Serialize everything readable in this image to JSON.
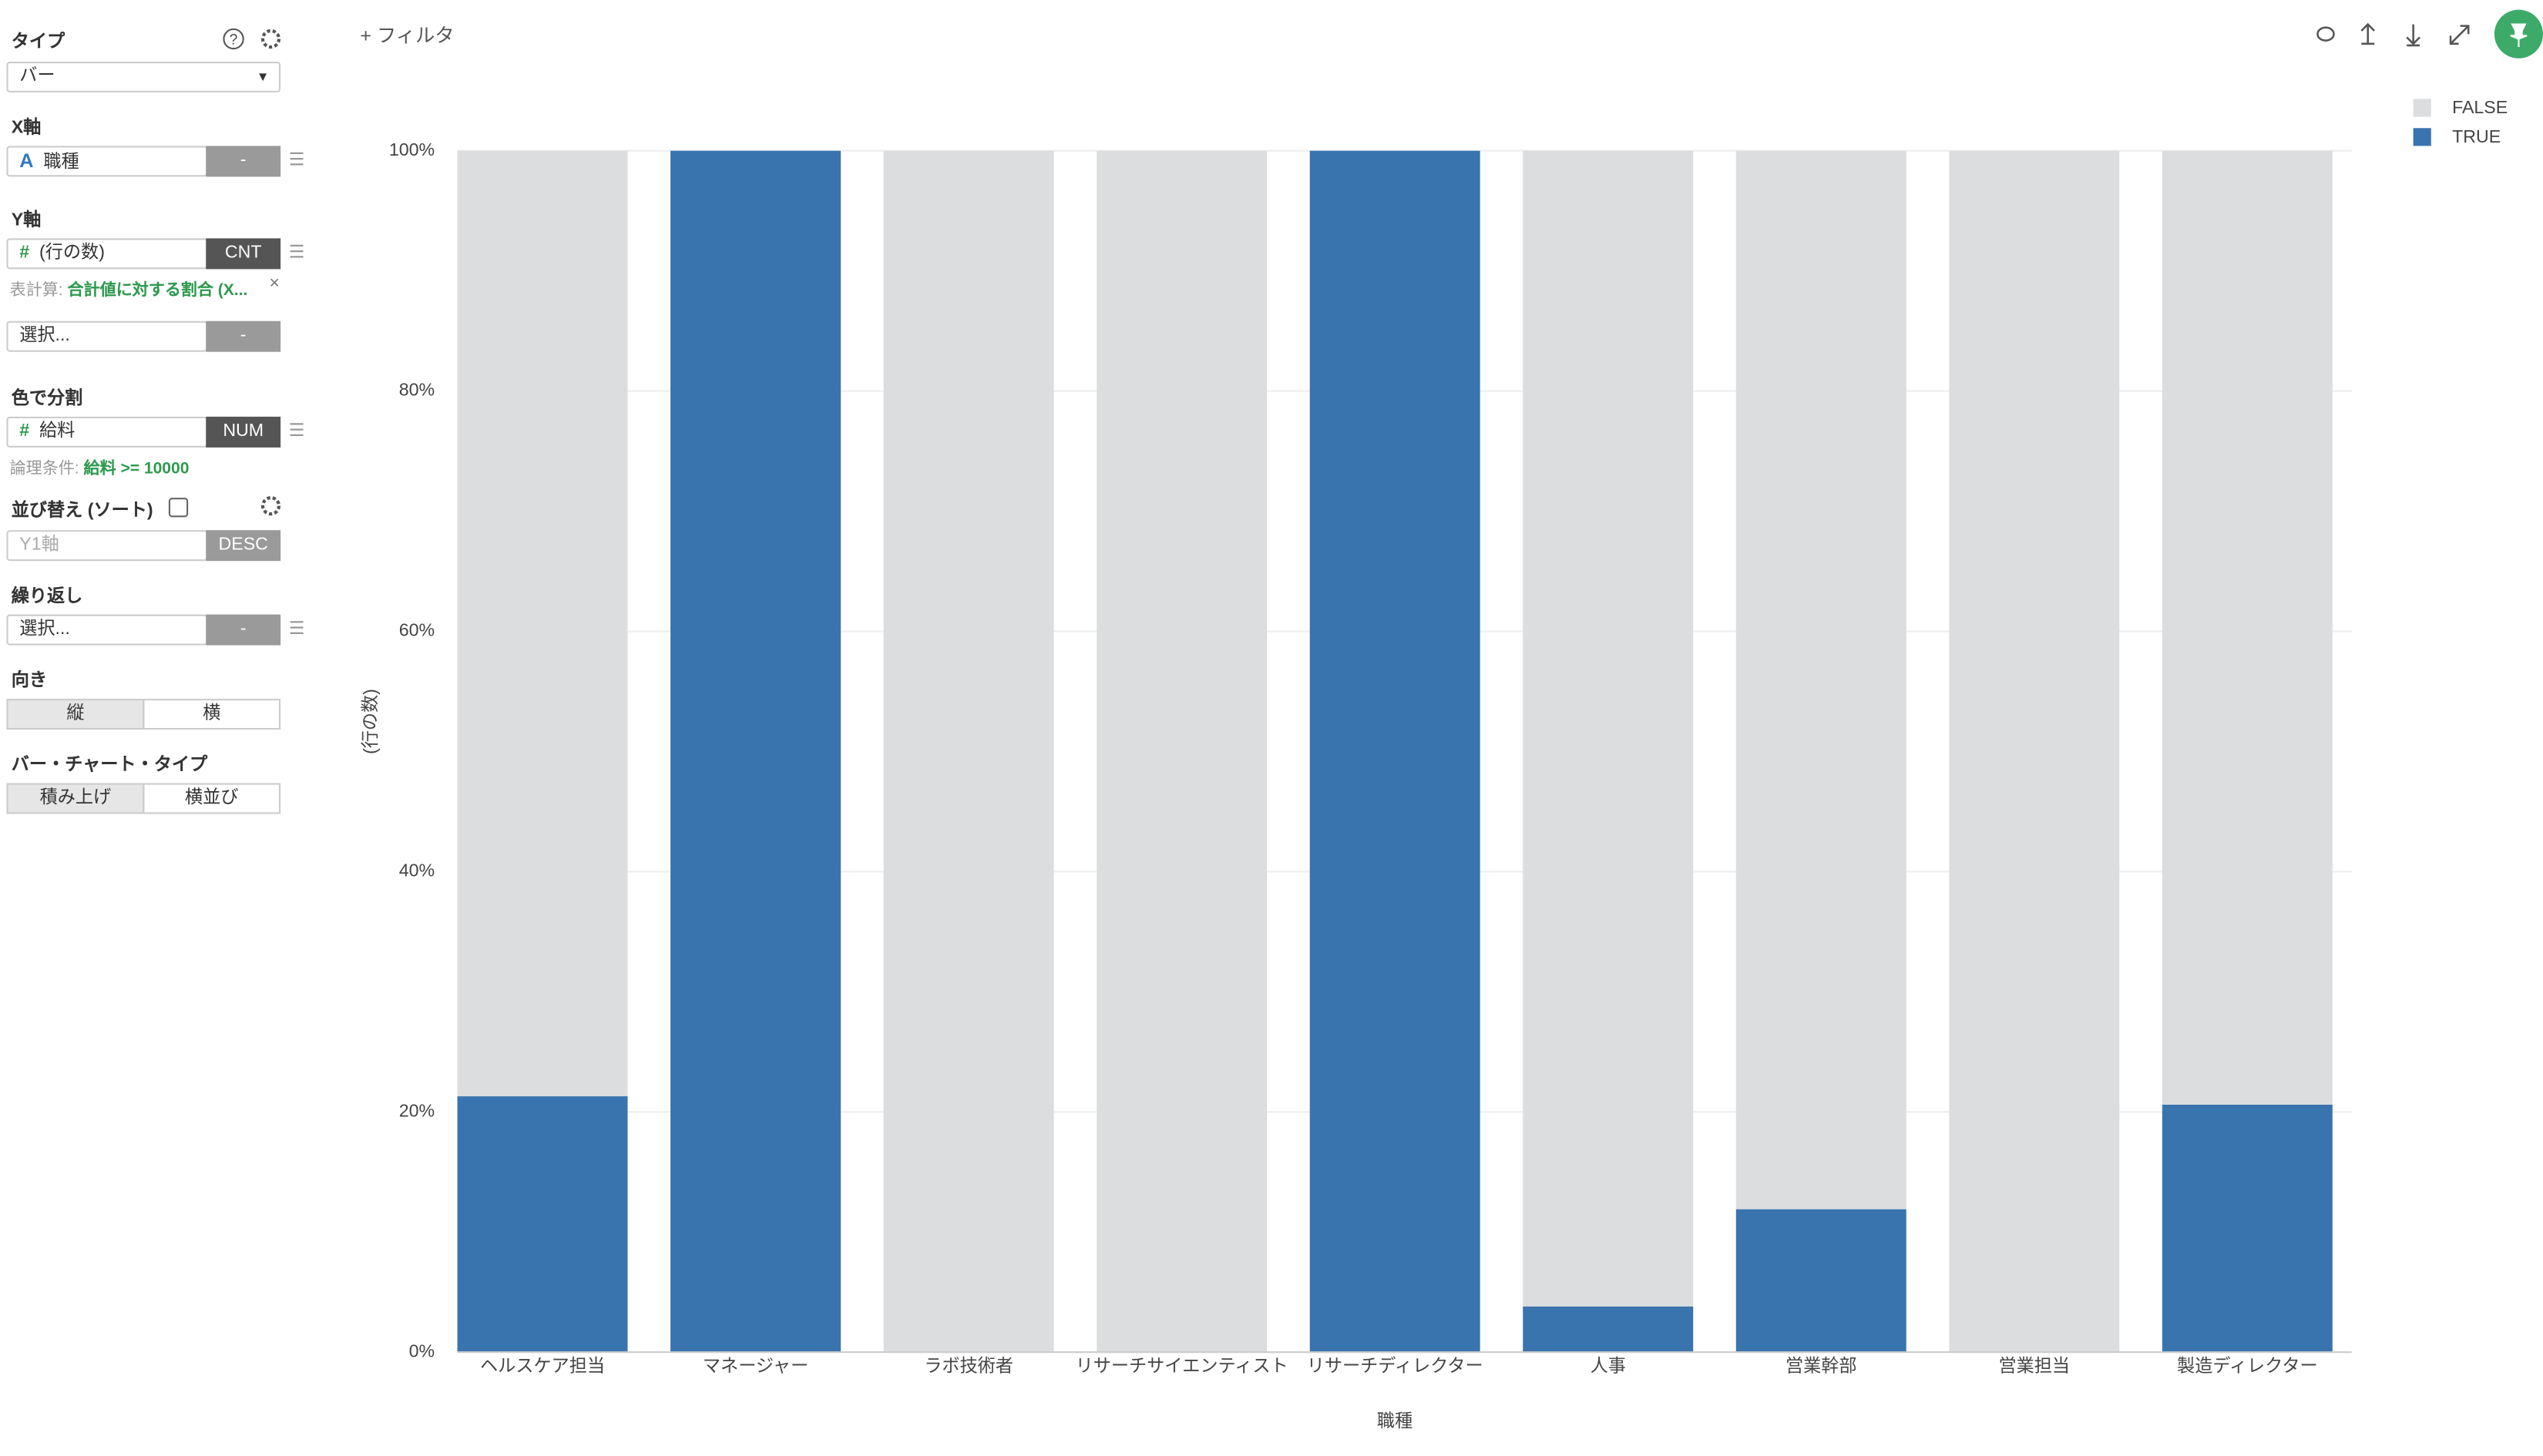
{
  "panel": {
    "type_label": "タイプ",
    "type_value": "バー",
    "x_label": "X軸",
    "x_icon": "A",
    "x_field": "職種",
    "x_agg": "-",
    "y_label": "Y軸",
    "y_icon": "#",
    "y_field": "(行の数)",
    "y_agg": "CNT",
    "calc_label": "表計算:",
    "calc_value": "合計値に対する割合 (X...",
    "y2_field": "選択...",
    "y2_agg": "-",
    "color_label": "色で分割",
    "color_icon": "#",
    "color_field": "給料",
    "color_agg": "NUM",
    "cond_label": "論理条件:",
    "cond_value": "給料 >= 10000",
    "sort_label": "並び替え (ソート)",
    "sort_field": "Y1軸",
    "sort_order": "DESC",
    "repeat_label": "繰り返し",
    "repeat_field": "選択...",
    "repeat_agg": "-",
    "orient_label": "向き",
    "orient_options": [
      "縦",
      "横"
    ],
    "bartype_label": "バー・チャート・タイプ",
    "bartype_options": [
      "積み上げ",
      "横並び"
    ]
  },
  "toolbar": {
    "filter": "+ フィルタ"
  },
  "chart_data": {
    "type": "stacked_bar",
    "x_label": "職種",
    "y_label": "(行の数)",
    "categories": [
      "ヘルスケア担当",
      "マネージャー",
      "ラボ技術者",
      "リサーチサイエンティスト",
      "リサーチディレクター",
      "人事",
      "営業幹部",
      "営業担当",
      "製造ディレクター"
    ],
    "series": [
      {
        "name": "FALSE",
        "color": "#dcdddf",
        "values": [
          78.7,
          0,
          100,
          100,
          0,
          96.2,
          88.1,
          100,
          79.4
        ]
      },
      {
        "name": "TRUE",
        "color": "#3a74ae",
        "values": [
          21.3,
          100,
          0,
          0,
          100,
          3.8,
          11.9,
          0,
          20.6
        ]
      }
    ],
    "ylim": [
      0,
      100
    ],
    "yticks": [
      {
        "value": 0,
        "label": "0%"
      },
      {
        "value": 20,
        "label": "20%"
      },
      {
        "value": 40,
        "label": "40%"
      },
      {
        "value": 60,
        "label": "60%"
      },
      {
        "value": 80,
        "label": "80%"
      },
      {
        "value": 100,
        "label": "100%"
      }
    ],
    "grid": true,
    "legend": "top-right"
  }
}
